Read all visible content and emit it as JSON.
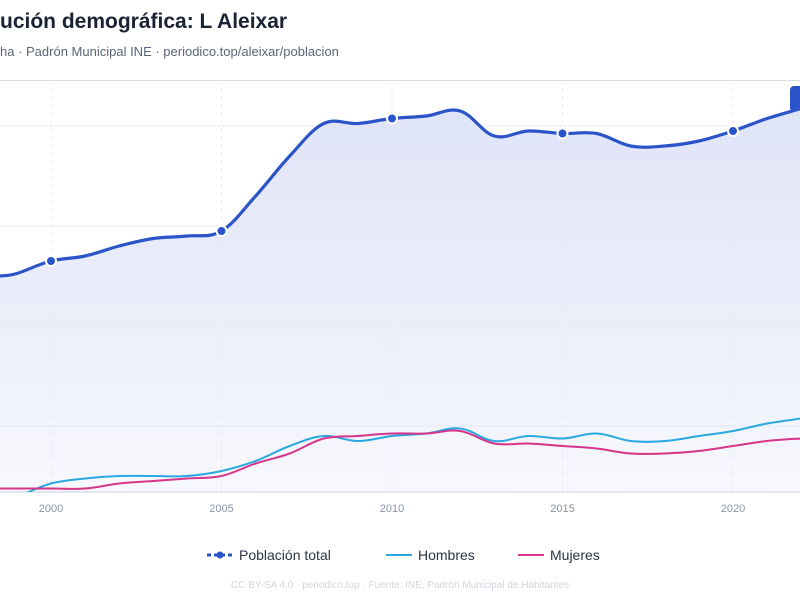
{
  "header": {
    "title": "ución demográfica: L Aleixar",
    "subtitle": "ha · Padrón Municipal INE · periodico.top/aleixar/poblacion"
  },
  "footer": {
    "text": "CC BY-SA 4.0 · periodico.top · Fuente: INE, Padrón Municipal de Habitantes"
  },
  "colors": {
    "total": "#2a54c8",
    "hombres": "#2aa8e0",
    "mujeres": "#d6358a",
    "area_fill": "#dfe4f7",
    "grid": "#e7ebf2"
  },
  "chart_data": {
    "type": "line",
    "x_ticks": [
      2000,
      2005,
      2010,
      2015,
      2020
    ],
    "xlim": [
      1998.5,
      2022
    ],
    "grid": true,
    "legend_position": "bottom",
    "series": [
      {
        "key": "total",
        "name": "Población total",
        "style": "line-with-markers-and-area",
        "x": [
          1998.5,
          1999,
          2000,
          2001,
          2002,
          2003,
          2004,
          2005,
          2006,
          2007,
          2008,
          2009,
          2010,
          2011,
          2012,
          2013,
          2014,
          2015,
          2016,
          2017,
          2018,
          2019,
          2020,
          2021,
          2022
        ],
        "y": [
          80.0,
          80.5,
          83.0,
          84.0,
          86.0,
          87.5,
          88.0,
          89.0,
          96.0,
          104.0,
          110.5,
          110.5,
          111.5,
          112.0,
          113.0,
          108.0,
          109.0,
          108.5,
          108.5,
          106.0,
          106.0,
          107.0,
          109.0,
          111.5,
          113.5
        ],
        "markers_at": [
          2000,
          2005,
          2010,
          2015,
          2020
        ]
      },
      {
        "key": "hombres",
        "name": "Hombres",
        "style": "line",
        "x": [
          1998.5,
          1999,
          2000,
          2001,
          2002,
          2003,
          2004,
          2005,
          2006,
          2007,
          2008,
          2009,
          2010,
          2011,
          2012,
          2013,
          2014,
          2015,
          2016,
          2017,
          2018,
          2019,
          2020,
          2021,
          2022
        ],
        "y": [
          36.5,
          36.0,
          38.5,
          39.5,
          40.0,
          40.0,
          40.0,
          41.0,
          43.0,
          46.0,
          48.0,
          47.0,
          48.0,
          48.5,
          49.5,
          47.0,
          48.0,
          47.5,
          48.5,
          47.0,
          47.0,
          48.0,
          49.0,
          50.5,
          51.5
        ]
      },
      {
        "key": "mujeres",
        "name": "Mujeres",
        "style": "line",
        "x": [
          1998.5,
          1999,
          2000,
          2001,
          2002,
          2003,
          2004,
          2005,
          2006,
          2007,
          2008,
          2009,
          2010,
          2011,
          2012,
          2013,
          2014,
          2015,
          2016,
          2017,
          2018,
          2019,
          2020,
          2021,
          2022
        ],
        "y": [
          37.5,
          37.5,
          37.5,
          37.5,
          38.5,
          39.0,
          39.5,
          40.0,
          42.5,
          44.5,
          47.5,
          48.0,
          48.5,
          48.5,
          49.0,
          46.5,
          46.5,
          46.0,
          45.5,
          44.5,
          44.5,
          45.0,
          46.0,
          47.0,
          47.5
        ]
      }
    ]
  }
}
